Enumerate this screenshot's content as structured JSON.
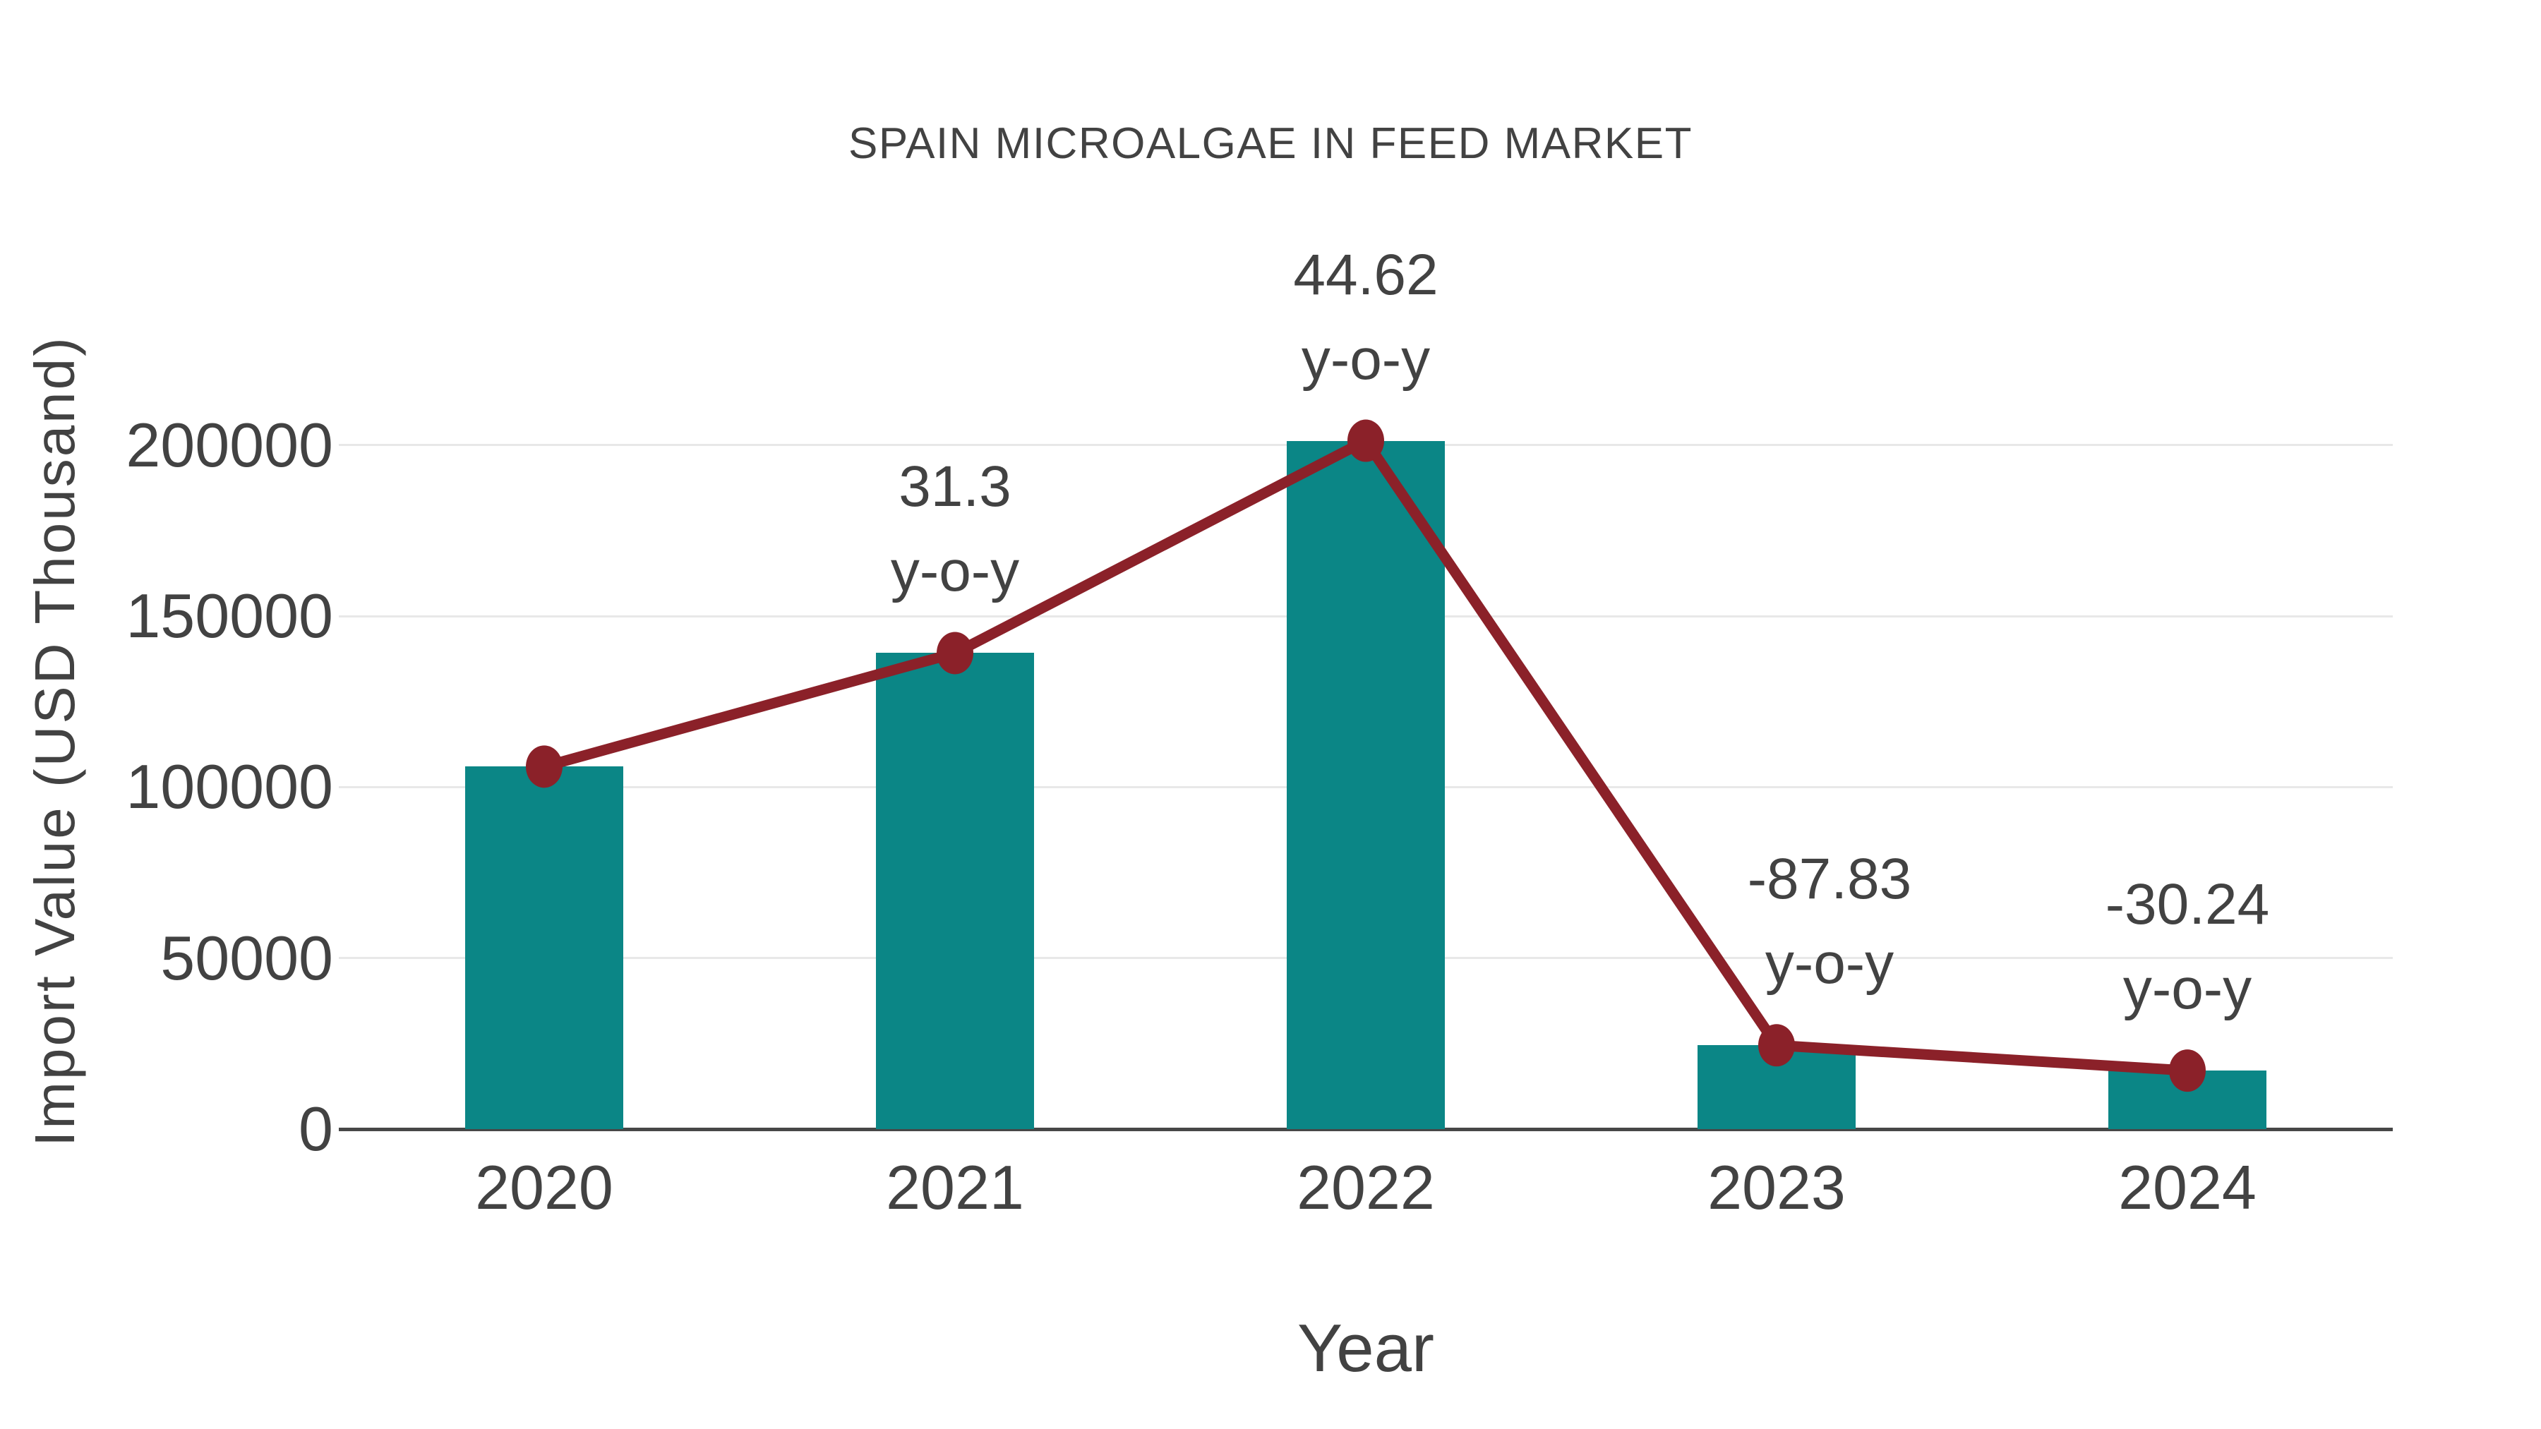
{
  "chart_data": {
    "type": "bar",
    "title": "SPAIN MICROALGAE IN FEED MARKET",
    "xlabel": "Year",
    "ylabel": "Import Value (USD Thousand)",
    "categories": [
      "2020",
      "2021",
      "2022",
      "2023",
      "2024"
    ],
    "yticks": [
      0,
      50000,
      100000,
      150000,
      200000
    ],
    "ylim": [
      0,
      227000
    ],
    "grid": "horizontal",
    "legend": "none",
    "series": [
      {
        "name": "Import Value (USD Thousand)",
        "type": "bar",
        "color": "#0b8686",
        "values": [
          106000,
          139200,
          201300,
          24500,
          17100
        ]
      },
      {
        "name": "y-o-y change (%)",
        "type": "line",
        "color": "#8b2129",
        "marker": "circle",
        "anchored_to": "bar_tops",
        "values": [
          null,
          31.3,
          44.62,
          -87.83,
          -30.24
        ]
      }
    ],
    "annotations": [
      {
        "category": "2021",
        "value_label": "31.3",
        "suffix": "y-o-y"
      },
      {
        "category": "2022",
        "value_label": "44.62",
        "suffix": "y-o-y"
      },
      {
        "category": "2023",
        "value_label": "-87.83",
        "suffix": "y-o-y"
      },
      {
        "category": "2024",
        "value_label": "-30.24",
        "suffix": "y-o-y"
      }
    ],
    "colors": {
      "bar": "#0b8686",
      "line": "#8b2129",
      "marker": "#8b2129",
      "text": "#424242",
      "gridline": "#e8e8e8",
      "axis": "#474747",
      "background": "#ffffff"
    }
  }
}
